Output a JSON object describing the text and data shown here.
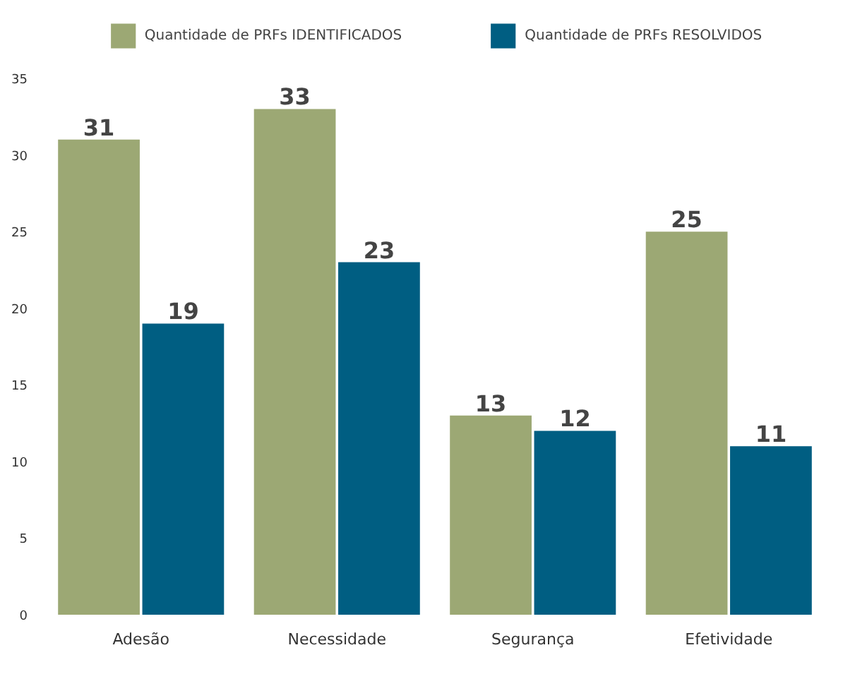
{
  "chart_data": {
    "type": "bar",
    "categories": [
      "Adesão",
      "Necessidade",
      "Segurança",
      "Efetividade"
    ],
    "series": [
      {
        "name": "Quantidade de PRFs IDENTIFICADOS",
        "color": "#9ca874",
        "values": [
          31,
          33,
          13,
          25
        ]
      },
      {
        "name": "Quantidade de PRFs RESOLVIDOS",
        "color": "#005e82",
        "values": [
          19,
          23,
          12,
          11
        ]
      }
    ],
    "ylim": [
      0,
      35
    ],
    "yticks": [
      0,
      5,
      10,
      15,
      20,
      25,
      30,
      35
    ],
    "grid": false,
    "legend": "top",
    "data_labels": true
  }
}
